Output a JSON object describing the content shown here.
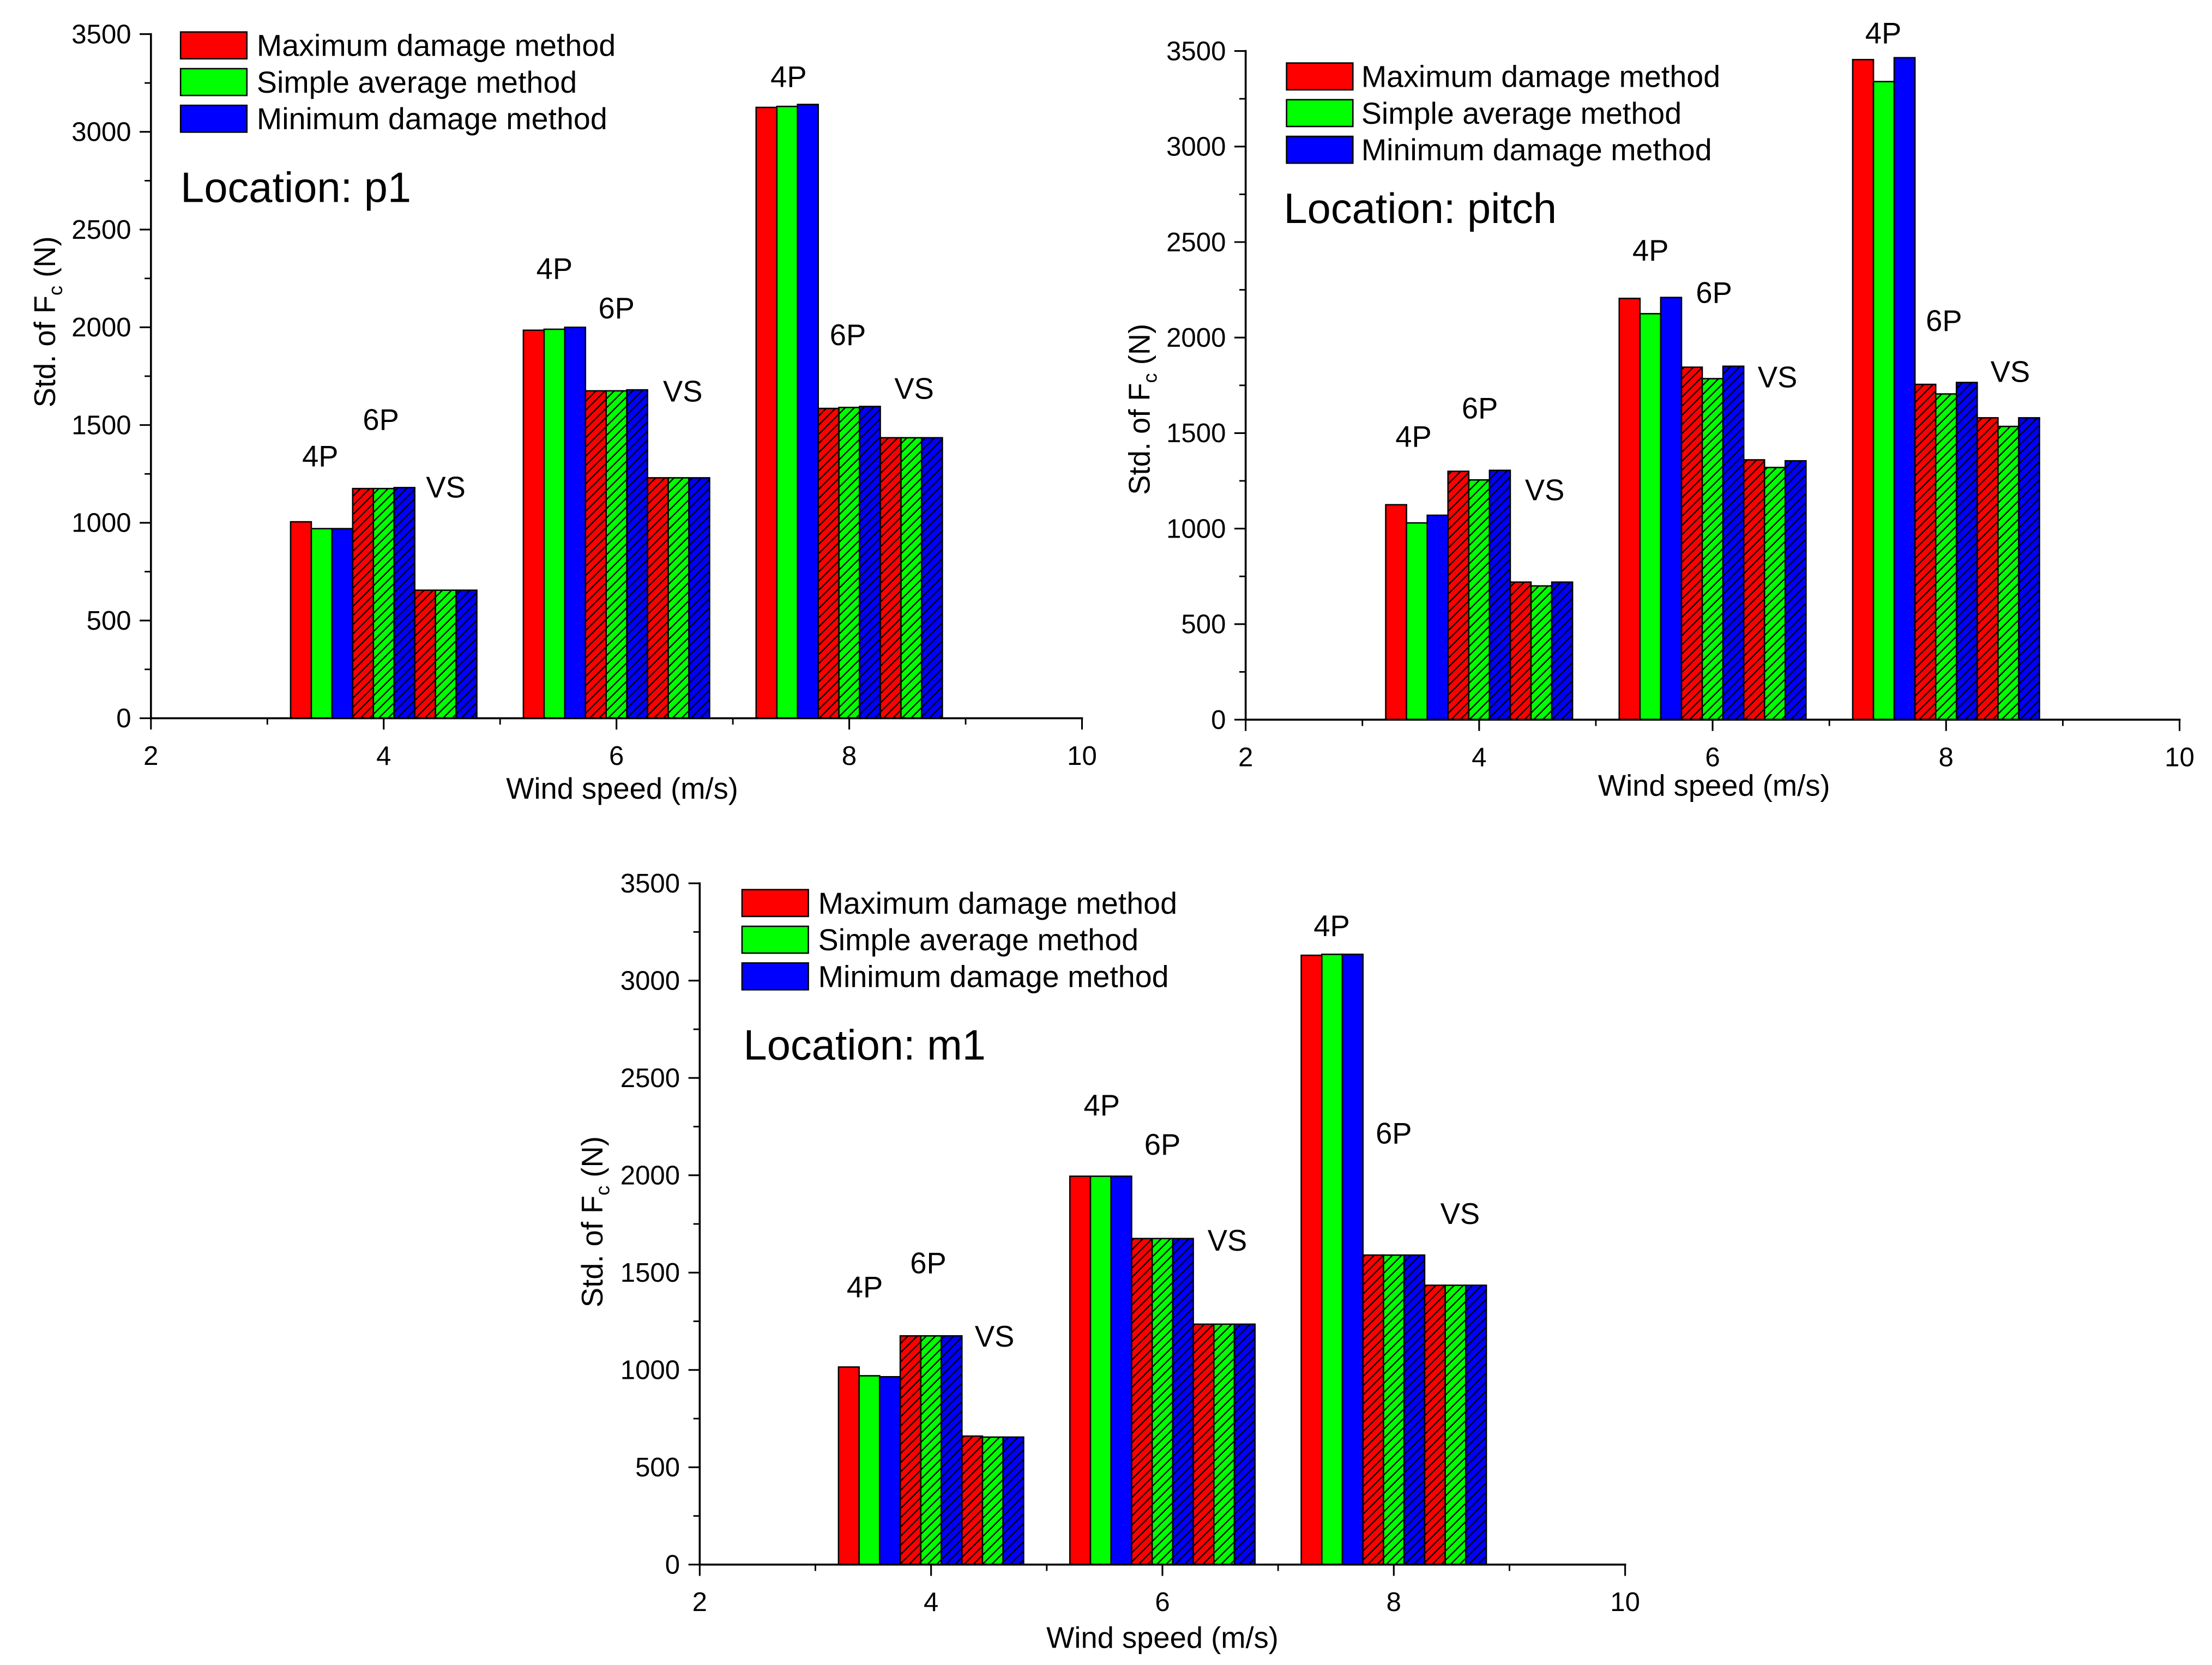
{
  "chart_data": [
    {
      "type": "bar",
      "title": "Location: p1",
      "xlabel": "Wind speed (m/s)",
      "ylabel": {
        "main": "Std. of F",
        "sub": "c",
        "tail": " (N)"
      },
      "xlim": [
        2,
        10
      ],
      "ylim": [
        0,
        3500
      ],
      "xticks": [
        2,
        4,
        6,
        8,
        10
      ],
      "yticks": [
        0,
        500,
        1000,
        1500,
        2000,
        2500,
        3000,
        3500
      ],
      "grid": false,
      "series": [
        {
          "name": "Maximum damage method",
          "color": "#ff0000"
        },
        {
          "name": "Simple average method",
          "color": "#00ff00"
        },
        {
          "name": "Minimum damage method",
          "color": "#0000ff"
        }
      ],
      "groups": [
        {
          "x": 4,
          "components": [
            {
              "label": "4P",
              "hatched": false,
              "values": [
                1005,
                970,
                970
              ]
            },
            {
              "label": "6P",
              "hatched": true,
              "values": [
                1175,
                1175,
                1180
              ]
            },
            {
              "label": "VS",
              "hatched": true,
              "values": [
                655,
                655,
                655
              ]
            }
          ]
        },
        {
          "x": 6,
          "components": [
            {
              "label": "4P",
              "hatched": false,
              "values": [
                1985,
                1990,
                2000
              ]
            },
            {
              "label": "6P",
              "hatched": true,
              "values": [
                1675,
                1675,
                1680
              ]
            },
            {
              "label": "VS",
              "hatched": true,
              "values": [
                1230,
                1230,
                1230
              ]
            }
          ]
        },
        {
          "x": 8,
          "components": [
            {
              "label": "4P",
              "hatched": false,
              "values": [
                3125,
                3130,
                3140
              ]
            },
            {
              "label": "6P",
              "hatched": true,
              "values": [
                1585,
                1590,
                1595
              ]
            },
            {
              "label": "VS",
              "hatched": true,
              "values": [
                1435,
                1435,
                1435
              ]
            }
          ]
        }
      ]
    },
    {
      "type": "bar",
      "title": "Location: pitch",
      "xlabel": "Wind speed (m/s)",
      "ylabel": {
        "main": "Std. of F",
        "sub": "c",
        "tail": " (N)"
      },
      "xlim": [
        2,
        10
      ],
      "ylim": [
        0,
        3500
      ],
      "xticks": [
        2,
        4,
        6,
        8,
        10
      ],
      "yticks": [
        0,
        500,
        1000,
        1500,
        2000,
        2500,
        3000,
        3500
      ],
      "grid": false,
      "series": [
        {
          "name": "Maximum damage method",
          "color": "#ff0000"
        },
        {
          "name": "Simple average method",
          "color": "#00ff00"
        },
        {
          "name": "Minimum damage method",
          "color": "#0000ff"
        }
      ],
      "groups": [
        {
          "x": 4,
          "components": [
            {
              "label": "4P",
              "hatched": false,
              "values": [
                1125,
                1030,
                1070
              ]
            },
            {
              "label": "6P",
              "hatched": true,
              "values": [
                1300,
                1255,
                1305
              ]
            },
            {
              "label": "VS",
              "hatched": true,
              "values": [
                720,
                700,
                720
              ]
            }
          ]
        },
        {
          "x": 6,
          "components": [
            {
              "label": "4P",
              "hatched": false,
              "values": [
                2205,
                2125,
                2210
              ]
            },
            {
              "label": "6P",
              "hatched": true,
              "values": [
                1845,
                1785,
                1850
              ]
            },
            {
              "label": "VS",
              "hatched": true,
              "values": [
                1360,
                1320,
                1355
              ]
            }
          ]
        },
        {
          "x": 8,
          "components": [
            {
              "label": "4P",
              "hatched": false,
              "values": [
                3455,
                3340,
                3465
              ]
            },
            {
              "label": "6P",
              "hatched": true,
              "values": [
                1755,
                1705,
                1765
              ]
            },
            {
              "label": "VS",
              "hatched": true,
              "values": [
                1580,
                1535,
                1580
              ]
            }
          ]
        }
      ]
    },
    {
      "type": "bar",
      "title": "Location: m1",
      "xlabel": "Wind speed (m/s)",
      "ylabel": {
        "main": "Std. of F",
        "sub": "c",
        "tail": " (N)"
      },
      "xlim": [
        2,
        10
      ],
      "ylim": [
        0,
        3500
      ],
      "xticks": [
        2,
        4,
        6,
        8,
        10
      ],
      "yticks": [
        0,
        500,
        1000,
        1500,
        2000,
        2500,
        3000,
        3500
      ],
      "grid": false,
      "series": [
        {
          "name": "Maximum damage method",
          "color": "#ff0000"
        },
        {
          "name": "Simple average method",
          "color": "#00ff00"
        },
        {
          "name": "Minimum damage method",
          "color": "#0000ff"
        }
      ],
      "groups": [
        {
          "x": 4,
          "components": [
            {
              "label": "4P",
              "hatched": false,
              "values": [
                1015,
                970,
                965
              ]
            },
            {
              "label": "6P",
              "hatched": true,
              "values": [
                1175,
                1175,
                1175
              ]
            },
            {
              "label": "VS",
              "hatched": true,
              "values": [
                660,
                655,
                655
              ]
            }
          ]
        },
        {
          "x": 6,
          "components": [
            {
              "label": "4P",
              "hatched": false,
              "values": [
                1995,
                1995,
                1995
              ]
            },
            {
              "label": "6P",
              "hatched": true,
              "values": [
                1675,
                1675,
                1675
              ]
            },
            {
              "label": "VS",
              "hatched": true,
              "values": [
                1235,
                1235,
                1235
              ]
            }
          ]
        },
        {
          "x": 8,
          "components": [
            {
              "label": "4P",
              "hatched": false,
              "values": [
                3130,
                3135,
                3135
              ]
            },
            {
              "label": "6P",
              "hatched": true,
              "values": [
                1590,
                1590,
                1590
              ]
            },
            {
              "label": "VS",
              "hatched": true,
              "values": [
                1435,
                1435,
                1435
              ]
            }
          ]
        }
      ]
    }
  ]
}
